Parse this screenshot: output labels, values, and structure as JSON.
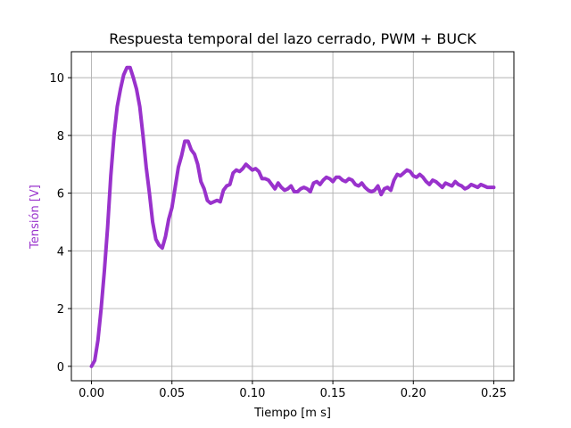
{
  "chart_data": {
    "type": "line",
    "title": "Respuesta temporal del lazo cerrado, PWM + BUCK",
    "xlabel": "Tiempo [m s]",
    "ylabel": "Tensión [V]",
    "xlim": [
      -0.0125,
      0.2625
    ],
    "ylim": [
      -0.5,
      10.9
    ],
    "xticks": [
      0.0,
      0.05,
      0.1,
      0.15,
      0.2,
      0.25
    ],
    "xtick_labels": [
      "0.00",
      "0.05",
      "0.10",
      "0.15",
      "0.20",
      "0.25"
    ],
    "yticks": [
      0,
      2,
      4,
      6,
      8,
      10
    ],
    "ytick_labels": [
      "0",
      "2",
      "4",
      "6",
      "8",
      "10"
    ],
    "grid": true,
    "series": [
      {
        "color": "#9932CC",
        "x": [
          0.0,
          0.002,
          0.004,
          0.006,
          0.008,
          0.01,
          0.012,
          0.014,
          0.016,
          0.018,
          0.02,
          0.022,
          0.024,
          0.026,
          0.028,
          0.03,
          0.032,
          0.034,
          0.036,
          0.038,
          0.04,
          0.042,
          0.044,
          0.046,
          0.048,
          0.05,
          0.052,
          0.054,
          0.056,
          0.058,
          0.06,
          0.062,
          0.064,
          0.066,
          0.068,
          0.07,
          0.072,
          0.074,
          0.076,
          0.078,
          0.08,
          0.082,
          0.084,
          0.086,
          0.088,
          0.09,
          0.092,
          0.094,
          0.096,
          0.098,
          0.1,
          0.102,
          0.104,
          0.106,
          0.108,
          0.11,
          0.112,
          0.114,
          0.116,
          0.118,
          0.12,
          0.122,
          0.124,
          0.126,
          0.128,
          0.13,
          0.132,
          0.134,
          0.136,
          0.138,
          0.14,
          0.142,
          0.144,
          0.146,
          0.148,
          0.15,
          0.152,
          0.154,
          0.156,
          0.158,
          0.16,
          0.162,
          0.164,
          0.166,
          0.168,
          0.17,
          0.172,
          0.174,
          0.176,
          0.178,
          0.18,
          0.182,
          0.184,
          0.186,
          0.188,
          0.19,
          0.192,
          0.194,
          0.196,
          0.198,
          0.2,
          0.202,
          0.204,
          0.206,
          0.208,
          0.21,
          0.212,
          0.214,
          0.216,
          0.218,
          0.22,
          0.222,
          0.224,
          0.226,
          0.228,
          0.23,
          0.232,
          0.234,
          0.236,
          0.238,
          0.24,
          0.242,
          0.244,
          0.246,
          0.248,
          0.25
        ],
        "y": [
          0.0,
          0.2,
          0.9,
          2.0,
          3.3,
          4.8,
          6.6,
          8.0,
          9.0,
          9.6,
          10.1,
          10.35,
          10.35,
          10.0,
          9.6,
          9.0,
          8.0,
          6.9,
          6.0,
          5.0,
          4.4,
          4.2,
          4.1,
          4.5,
          5.1,
          5.5,
          6.2,
          6.9,
          7.3,
          7.8,
          7.8,
          7.5,
          7.35,
          7.0,
          6.4,
          6.15,
          5.75,
          5.65,
          5.7,
          5.75,
          5.7,
          6.1,
          6.25,
          6.3,
          6.7,
          6.8,
          6.75,
          6.85,
          7.0,
          6.9,
          6.8,
          6.85,
          6.75,
          6.5,
          6.5,
          6.45,
          6.3,
          6.15,
          6.35,
          6.2,
          6.1,
          6.15,
          6.25,
          6.05,
          6.05,
          6.15,
          6.2,
          6.15,
          6.05,
          6.35,
          6.4,
          6.3,
          6.45,
          6.55,
          6.5,
          6.4,
          6.55,
          6.55,
          6.45,
          6.4,
          6.5,
          6.45,
          6.3,
          6.25,
          6.35,
          6.2,
          6.1,
          6.05,
          6.1,
          6.25,
          5.95,
          6.15,
          6.2,
          6.1,
          6.45,
          6.65,
          6.6,
          6.7,
          6.8,
          6.75,
          6.6,
          6.55,
          6.65,
          6.55,
          6.4,
          6.3,
          6.45,
          6.4,
          6.3,
          6.2,
          6.35,
          6.3,
          6.25,
          6.4,
          6.3,
          6.25,
          6.15,
          6.2,
          6.3,
          6.25,
          6.2,
          6.3,
          6.25,
          6.2,
          6.2,
          6.2
        ]
      }
    ]
  }
}
